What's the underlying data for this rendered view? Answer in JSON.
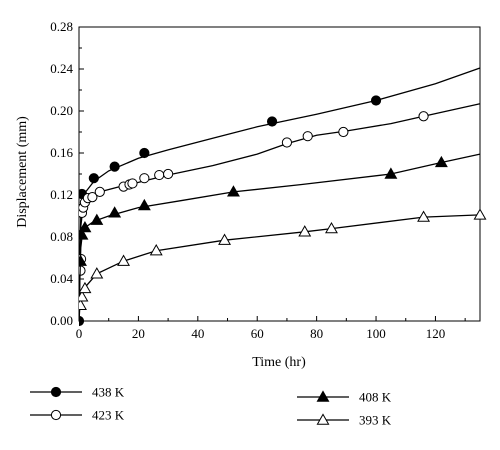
{
  "chart_data": {
    "type": "line",
    "title": "",
    "xlabel": "Time (hr)",
    "ylabel": "Displacement (mm)",
    "xlim": [
      0,
      135
    ],
    "ylim": [
      0,
      0.28
    ],
    "x_ticks": [
      0,
      20,
      40,
      60,
      80,
      100,
      120
    ],
    "x_tick_labels": [
      "0",
      "20",
      "40",
      "60",
      "80",
      "100",
      "120"
    ],
    "y_ticks": [
      0,
      0.04,
      0.08,
      0.12,
      0.16,
      0.2,
      0.24,
      0.28
    ],
    "y_tick_labels": [
      "0.00",
      "0.04",
      "0.08",
      "0.12",
      "0.16",
      "0.20",
      "0.24",
      "0.28"
    ],
    "grid": false,
    "legend_position": "bottom",
    "series": [
      {
        "name": "438 K",
        "marker": "circle-filled",
        "color": "#000000",
        "curve": [
          [
            0,
            0
          ],
          [
            0.3,
            0.06
          ],
          [
            0.6,
            0.1
          ],
          [
            1,
            0.115
          ],
          [
            2,
            0.122
          ],
          [
            5,
            0.133
          ],
          [
            10,
            0.143
          ],
          [
            20,
            0.155
          ],
          [
            30,
            0.163
          ],
          [
            45,
            0.174
          ],
          [
            60,
            0.185
          ],
          [
            80,
            0.197
          ],
          [
            100,
            0.21
          ],
          [
            120,
            0.226
          ],
          [
            135,
            0.241
          ]
        ],
        "markers": [
          [
            0,
            0
          ],
          [
            1,
            0.121
          ],
          [
            5,
            0.136
          ],
          [
            12,
            0.147
          ],
          [
            22,
            0.16
          ],
          [
            65,
            0.19
          ],
          [
            100,
            0.21
          ]
        ]
      },
      {
        "name": "423 K",
        "marker": "circle-open",
        "color": "#000000",
        "curve": [
          [
            0,
            0
          ],
          [
            0.3,
            0.05
          ],
          [
            0.6,
            0.09
          ],
          [
            1,
            0.1
          ],
          [
            1.5,
            0.11
          ],
          [
            2.5,
            0.115
          ],
          [
            4,
            0.118
          ],
          [
            7,
            0.123
          ],
          [
            15,
            0.129
          ],
          [
            20,
            0.132
          ],
          [
            30,
            0.139
          ],
          [
            45,
            0.148
          ],
          [
            60,
            0.159
          ],
          [
            70,
            0.169
          ],
          [
            80,
            0.177
          ],
          [
            90,
            0.181
          ],
          [
            105,
            0.188
          ],
          [
            116,
            0.195
          ],
          [
            135,
            0.207
          ]
        ],
        "markers": [
          [
            0.5,
            0.048
          ],
          [
            0.7,
            0.059
          ],
          [
            1,
            0.103
          ],
          [
            1.4,
            0.108
          ],
          [
            2,
            0.113
          ],
          [
            3,
            0.117
          ],
          [
            4.5,
            0.118
          ],
          [
            7,
            0.123
          ],
          [
            15,
            0.128
          ],
          [
            17,
            0.13
          ],
          [
            18,
            0.131
          ],
          [
            22,
            0.136
          ],
          [
            27,
            0.139
          ],
          [
            30,
            0.14
          ],
          [
            70,
            0.17
          ],
          [
            77,
            0.176
          ],
          [
            89,
            0.18
          ],
          [
            116,
            0.195
          ]
        ]
      },
      {
        "name": "408 K",
        "marker": "triangle-filled",
        "color": "#000000",
        "curve": [
          [
            0,
            0
          ],
          [
            0.3,
            0.04
          ],
          [
            0.6,
            0.07
          ],
          [
            1,
            0.08
          ],
          [
            2,
            0.089
          ],
          [
            5,
            0.095
          ],
          [
            10,
            0.1
          ],
          [
            20,
            0.108
          ],
          [
            35,
            0.115
          ],
          [
            52,
            0.123
          ],
          [
            75,
            0.13
          ],
          [
            105,
            0.14
          ],
          [
            122,
            0.151
          ],
          [
            135,
            0.159
          ]
        ],
        "markers": [
          [
            0.5,
            0.057
          ],
          [
            1,
            0.082
          ],
          [
            2,
            0.089
          ],
          [
            6,
            0.096
          ],
          [
            12,
            0.103
          ],
          [
            22,
            0.11
          ],
          [
            52,
            0.123
          ],
          [
            105,
            0.14
          ],
          [
            122,
            0.151
          ]
        ]
      },
      {
        "name": "393 K",
        "marker": "triangle-open",
        "color": "#000000",
        "curve": [
          [
            0,
            0
          ],
          [
            0.3,
            0.015
          ],
          [
            0.6,
            0.025
          ],
          [
            1,
            0.028
          ],
          [
            2,
            0.032
          ],
          [
            6,
            0.045
          ],
          [
            15,
            0.057
          ],
          [
            26,
            0.067
          ],
          [
            49,
            0.077
          ],
          [
            76,
            0.085
          ],
          [
            85,
            0.088
          ],
          [
            116,
            0.099
          ],
          [
            135,
            0.101
          ]
        ],
        "markers": [
          [
            0.5,
            0.015
          ],
          [
            1,
            0.023
          ],
          [
            2,
            0.031
          ],
          [
            6,
            0.045
          ],
          [
            15,
            0.057
          ],
          [
            26,
            0.067
          ],
          [
            49,
            0.077
          ],
          [
            76,
            0.085
          ],
          [
            85,
            0.088
          ],
          [
            116,
            0.099
          ],
          [
            135,
            0.101
          ]
        ]
      }
    ]
  }
}
